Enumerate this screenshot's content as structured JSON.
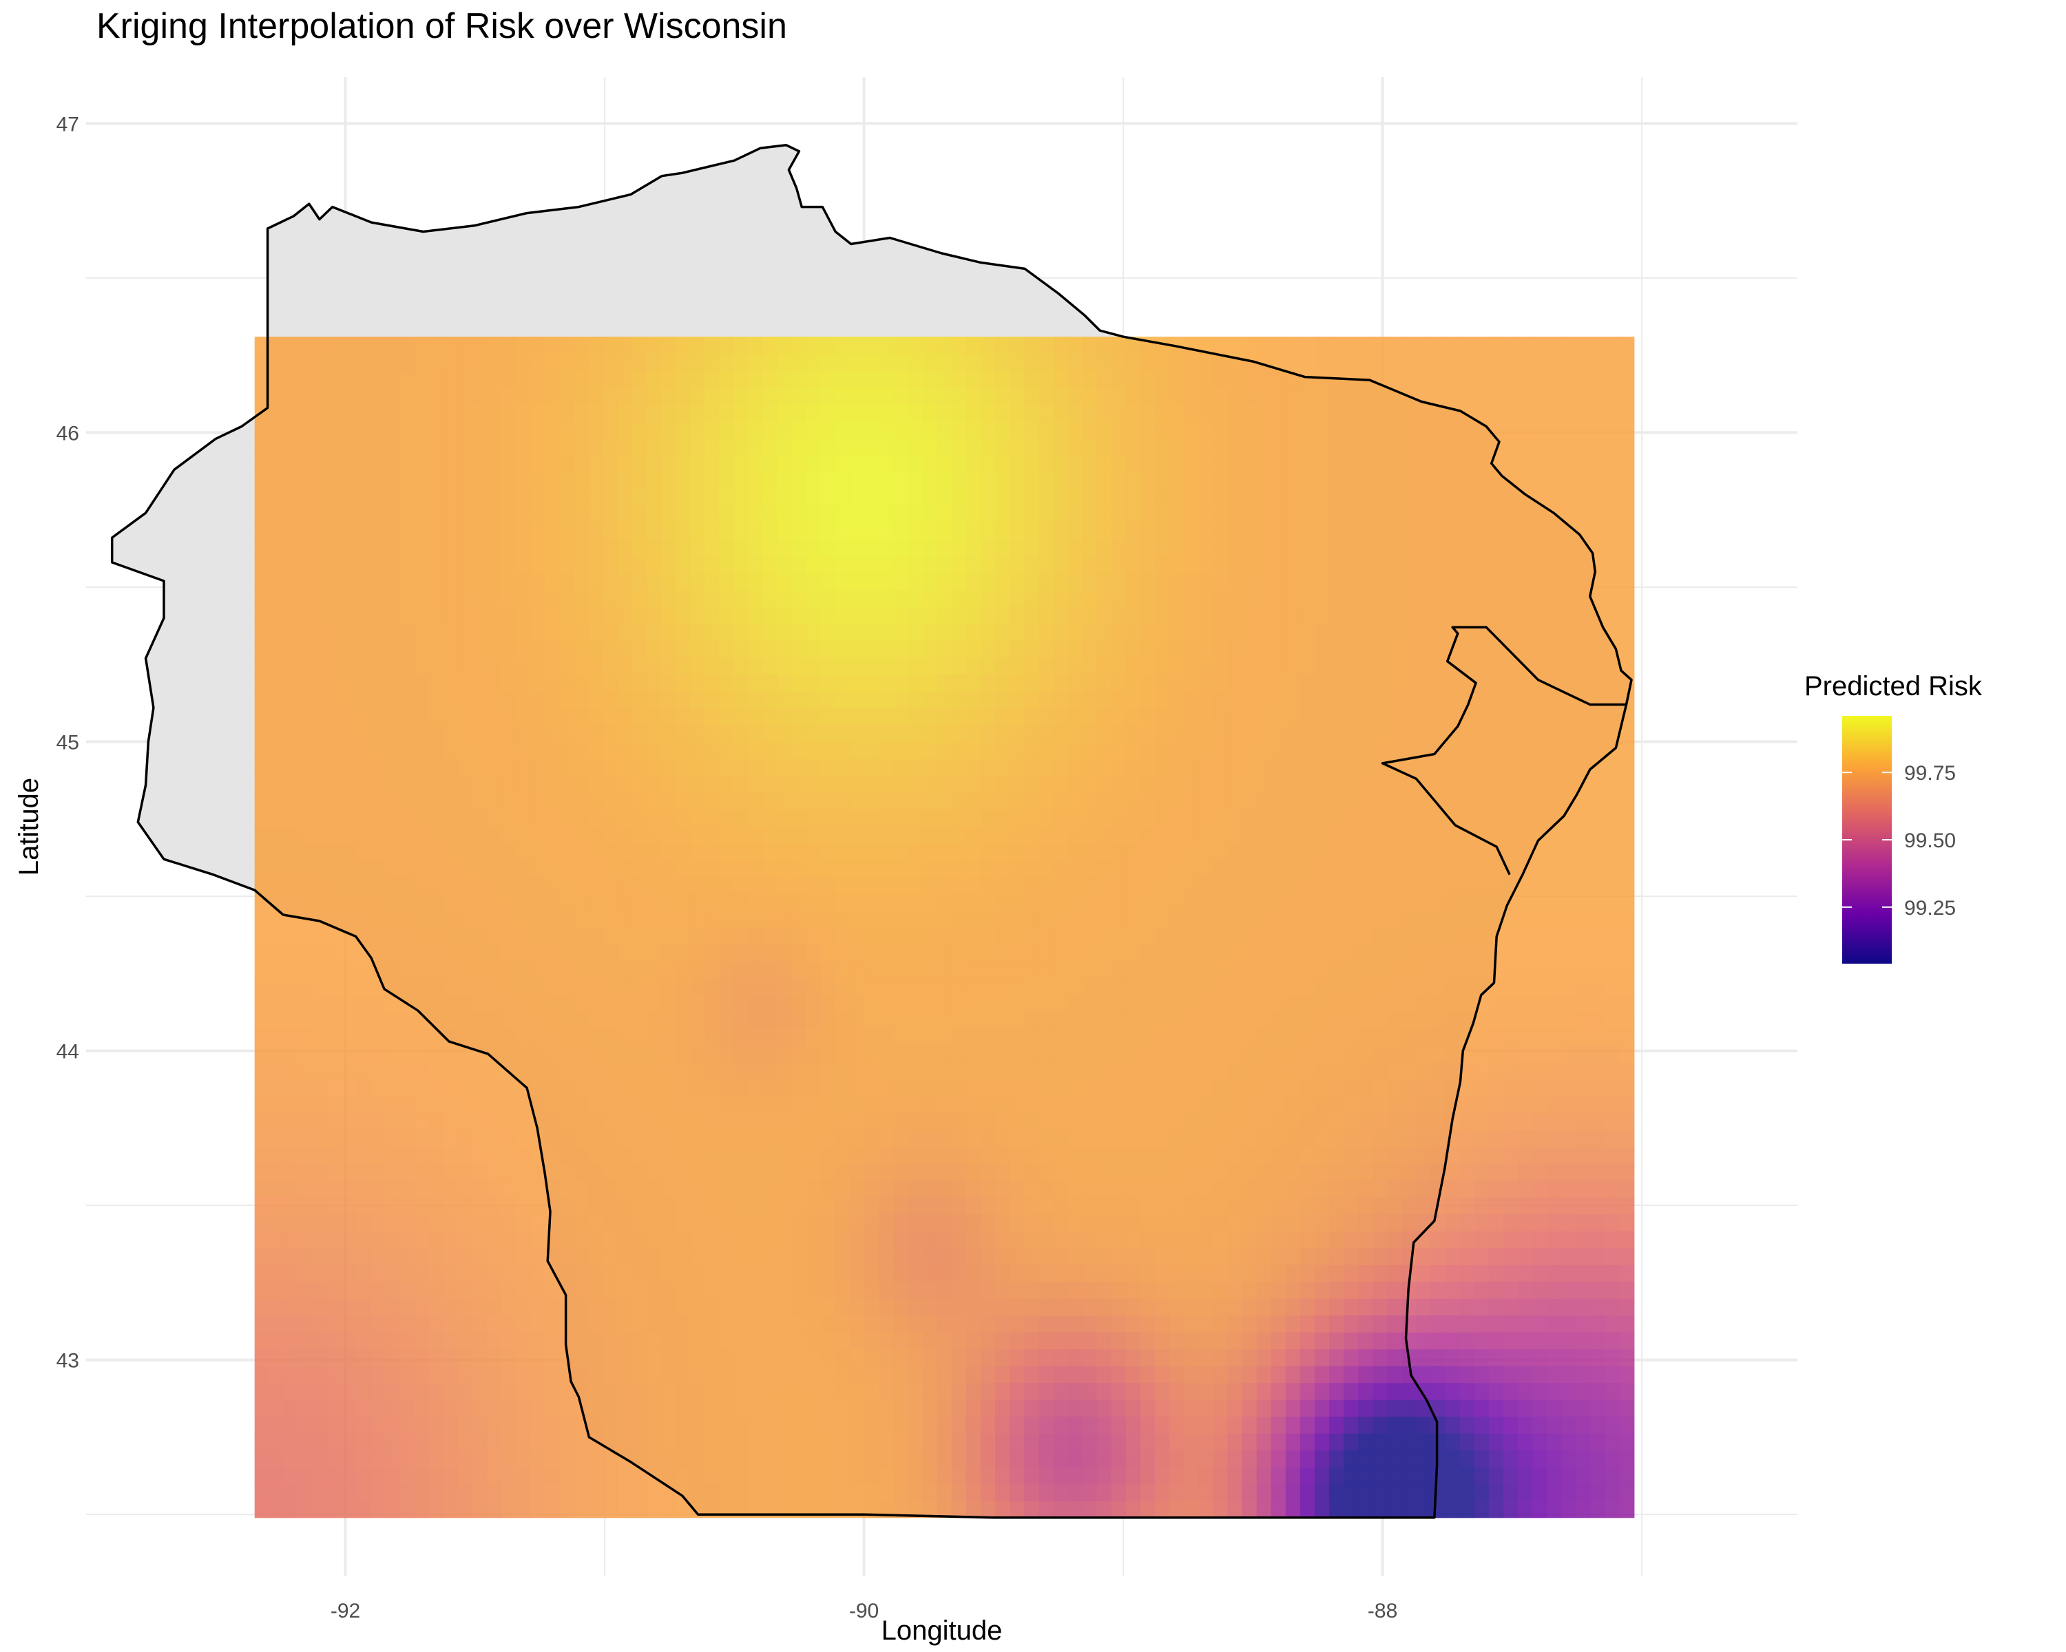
{
  "chart_data": {
    "type": "heatmap",
    "title": "Kriging Interpolation of Risk over Wisconsin",
    "xlabel": "Longitude",
    "ylabel": "Latitude",
    "xlim": [
      -93.0,
      -86.4
    ],
    "ylim": [
      42.3,
      47.15
    ],
    "x_ticks": [
      -92,
      -90,
      -88
    ],
    "y_ticks": [
      43,
      44,
      45,
      46,
      47
    ],
    "grid": true,
    "raster_extent": {
      "lon": [
        -92.35,
        -87.03
      ],
      "lat": [
        42.49,
        46.31
      ]
    },
    "legend": {
      "title": "Predicted Risk",
      "placement": "right",
      "range": [
        99.04,
        99.96
      ],
      "ticks": [
        "99.25",
        "99.50",
        "99.75"
      ],
      "tick_values": [
        99.25,
        99.5,
        99.75
      ]
    },
    "colormap": [
      "#0d0887",
      "#6a00a8",
      "#b12a90",
      "#e16462",
      "#fca636",
      "#f0f921"
    ],
    "background_color": "#e5e5e5",
    "risk_field": {
      "base_value": 99.76,
      "note_free_features": [
        {
          "lon": -90.0,
          "lat": 45.8,
          "delta": 0.2,
          "spread": 0.9
        },
        {
          "lon": -88.0,
          "lat": 42.55,
          "delta": -0.72,
          "spread": 0.45
        },
        {
          "lon": -87.2,
          "lat": 42.6,
          "delta": -0.45,
          "spread": 0.8
        },
        {
          "lon": -89.2,
          "lat": 42.7,
          "delta": -0.3,
          "spread": 0.4
        },
        {
          "lon": -89.75,
          "lat": 43.35,
          "delta": -0.08,
          "spread": 0.3
        },
        {
          "lon": -90.4,
          "lat": 44.15,
          "delta": -0.04,
          "spread": 0.25
        },
        {
          "lon": -92.3,
          "lat": 42.5,
          "delta": -0.15,
          "spread": 1.0
        }
      ]
    },
    "state_outline": [
      [
        -92.3,
        46.66
      ],
      [
        -92.2,
        46.7
      ],
      [
        -92.14,
        46.74
      ],
      [
        -92.1,
        46.69
      ],
      [
        -92.05,
        46.73
      ],
      [
        -91.9,
        46.68
      ],
      [
        -91.7,
        46.65
      ],
      [
        -91.5,
        46.67
      ],
      [
        -91.3,
        46.71
      ],
      [
        -91.1,
        46.73
      ],
      [
        -90.9,
        46.77
      ],
      [
        -90.78,
        46.83
      ],
      [
        -90.7,
        46.84
      ],
      [
        -90.5,
        46.88
      ],
      [
        -90.4,
        46.92
      ],
      [
        -90.3,
        46.93
      ],
      [
        -90.25,
        46.91
      ],
      [
        -90.29,
        46.85
      ],
      [
        -90.26,
        46.79
      ],
      [
        -90.24,
        46.73
      ],
      [
        -90.16,
        46.73
      ],
      [
        -90.11,
        46.65
      ],
      [
        -90.05,
        46.61
      ],
      [
        -89.9,
        46.63
      ],
      [
        -89.7,
        46.58
      ],
      [
        -89.55,
        46.55
      ],
      [
        -89.38,
        46.53
      ],
      [
        -89.25,
        46.45
      ],
      [
        -89.15,
        46.38
      ],
      [
        -89.09,
        46.33
      ],
      [
        -89.0,
        46.31
      ],
      [
        -88.8,
        46.28
      ],
      [
        -88.5,
        46.23
      ],
      [
        -88.3,
        46.18
      ],
      [
        -88.05,
        46.17
      ],
      [
        -87.85,
        46.1
      ],
      [
        -87.7,
        46.07
      ],
      [
        -87.6,
        46.02
      ],
      [
        -87.55,
        45.97
      ],
      [
        -87.58,
        45.9
      ],
      [
        -87.54,
        45.86
      ],
      [
        -87.45,
        45.8
      ],
      [
        -87.34,
        45.74
      ],
      [
        -87.24,
        45.67
      ],
      [
        -87.19,
        45.61
      ],
      [
        -87.18,
        45.55
      ],
      [
        -87.2,
        45.47
      ],
      [
        -87.15,
        45.37
      ],
      [
        -87.1,
        45.3
      ],
      [
        -87.08,
        45.23
      ],
      [
        -87.04,
        45.2
      ],
      [
        -87.06,
        45.12
      ],
      [
        -87.1,
        44.98
      ],
      [
        -87.2,
        44.91
      ],
      [
        -87.25,
        44.83
      ],
      [
        -87.3,
        44.76
      ],
      [
        -87.4,
        44.68
      ],
      [
        -87.46,
        44.57
      ],
      [
        -87.52,
        44.47
      ],
      [
        -87.56,
        44.37
      ],
      [
        -87.57,
        44.22
      ],
      [
        -87.62,
        44.18
      ],
      [
        -87.65,
        44.09
      ],
      [
        -87.69,
        44.0
      ],
      [
        -87.7,
        43.9
      ],
      [
        -87.73,
        43.78
      ],
      [
        -87.76,
        43.62
      ],
      [
        -87.8,
        43.45
      ],
      [
        -87.88,
        43.38
      ],
      [
        -87.9,
        43.23
      ],
      [
        -87.91,
        43.07
      ],
      [
        -87.89,
        42.95
      ],
      [
        -87.83,
        42.87
      ],
      [
        -87.79,
        42.8
      ],
      [
        -87.79,
        42.66
      ],
      [
        -87.8,
        42.49
      ],
      [
        -88.2,
        42.49
      ],
      [
        -88.8,
        42.49
      ],
      [
        -89.5,
        42.49
      ],
      [
        -90.0,
        42.5
      ],
      [
        -90.3,
        42.5
      ],
      [
        -90.64,
        42.5
      ],
      [
        -90.7,
        42.56
      ],
      [
        -90.9,
        42.67
      ],
      [
        -91.06,
        42.75
      ],
      [
        -91.1,
        42.88
      ],
      [
        -91.13,
        42.93
      ],
      [
        -91.15,
        43.05
      ],
      [
        -91.15,
        43.21
      ],
      [
        -91.22,
        43.32
      ],
      [
        -91.21,
        43.48
      ],
      [
        -91.23,
        43.6
      ],
      [
        -91.26,
        43.75
      ],
      [
        -91.3,
        43.88
      ],
      [
        -91.45,
        43.99
      ],
      [
        -91.6,
        44.03
      ],
      [
        -91.72,
        44.13
      ],
      [
        -91.85,
        44.2
      ],
      [
        -91.9,
        44.3
      ],
      [
        -91.96,
        44.37
      ],
      [
        -92.1,
        44.42
      ],
      [
        -92.24,
        44.44
      ],
      [
        -92.35,
        44.52
      ],
      [
        -92.51,
        44.57
      ],
      [
        -92.7,
        44.62
      ],
      [
        -92.8,
        44.74
      ],
      [
        -92.77,
        44.86
      ],
      [
        -92.76,
        45.0
      ],
      [
        -92.74,
        45.11
      ],
      [
        -92.77,
        45.27
      ],
      [
        -92.7,
        45.4
      ],
      [
        -92.7,
        45.52
      ],
      [
        -92.9,
        45.58
      ],
      [
        -92.9,
        45.66
      ],
      [
        -92.77,
        45.74
      ],
      [
        -92.66,
        45.88
      ],
      [
        -92.5,
        45.98
      ],
      [
        -92.4,
        46.02
      ],
      [
        -92.3,
        46.08
      ],
      [
        -92.3,
        46.3
      ],
      [
        -92.3,
        46.66
      ]
    ],
    "door_peninsula_outline": [
      [
        -87.51,
        44.57
      ],
      [
        -87.56,
        44.66
      ],
      [
        -87.72,
        44.73
      ],
      [
        -87.81,
        44.82
      ],
      [
        -87.87,
        44.88
      ],
      [
        -88.0,
        44.93
      ],
      [
        -87.8,
        44.96
      ],
      [
        -87.71,
        45.05
      ],
      [
        -87.67,
        45.12
      ],
      [
        -87.64,
        45.19
      ],
      [
        -87.75,
        45.26
      ],
      [
        -87.71,
        45.35
      ],
      [
        -87.73,
        45.37
      ],
      [
        -87.6,
        45.37
      ],
      [
        -87.4,
        45.2
      ],
      [
        -87.2,
        45.12
      ],
      [
        -87.06,
        45.12
      ]
    ],
    "green_bay_west_outline": [
      [
        -87.2,
        45.37
      ],
      [
        -87.27,
        45.28
      ],
      [
        -87.3,
        45.15
      ],
      [
        -87.35,
        45.05
      ],
      [
        -87.4,
        44.95
      ],
      [
        -87.5,
        44.85
      ],
      [
        -87.6,
        44.75
      ],
      [
        -87.7,
        44.65
      ],
      [
        -87.83,
        44.55
      ],
      [
        -88.0,
        44.54
      ]
    ]
  }
}
